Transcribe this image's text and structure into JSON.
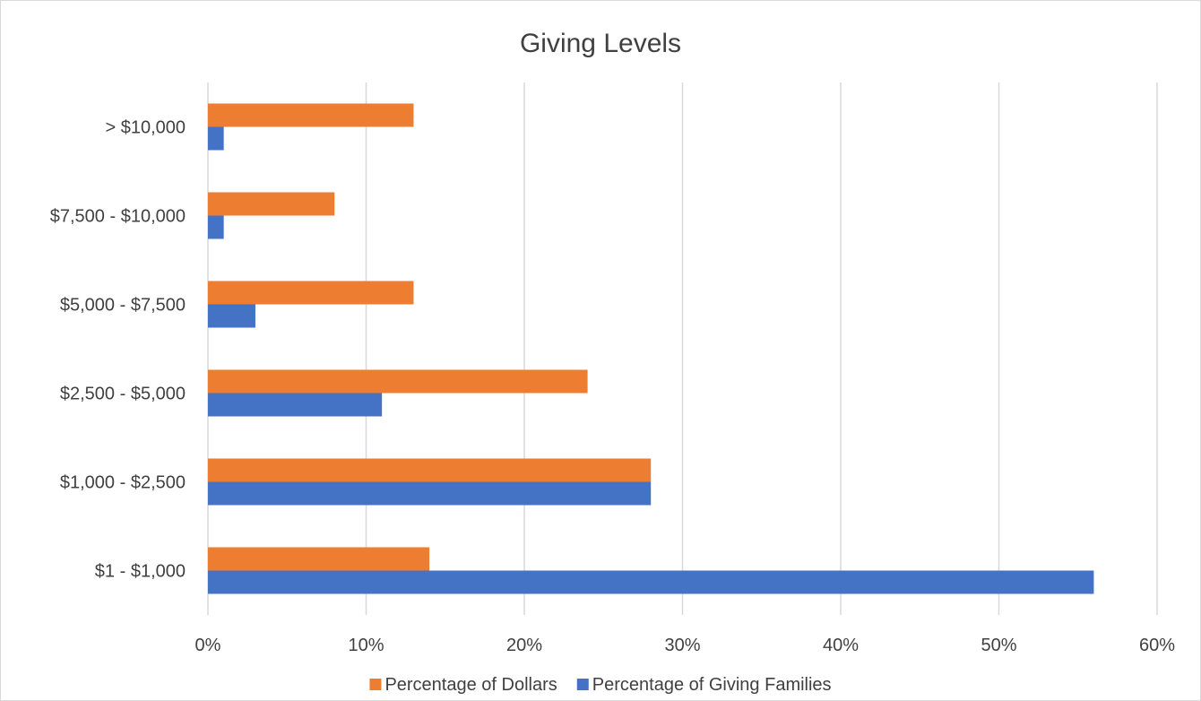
{
  "chart_data": {
    "type": "bar",
    "orientation": "horizontal",
    "title": "Giving Levels",
    "categories": [
      "$1 - $1,000",
      "$1,000 - $2,500",
      "$2,500 - $5,000",
      "$5,000 - $7,500",
      "$7,500 - $10,000",
      "> $10,000"
    ],
    "series": [
      {
        "name": "Percentage of Dollars",
        "color": "#ed7d31",
        "values": [
          14,
          28,
          24,
          13,
          8,
          13
        ]
      },
      {
        "name": "Percentage of Giving Families",
        "color": "#4472c4",
        "values": [
          56,
          28,
          11,
          3,
          1,
          1
        ]
      }
    ],
    "xlim": [
      0,
      60
    ],
    "xticks": [
      "0%",
      "10%",
      "20%",
      "30%",
      "40%",
      "50%",
      "60%"
    ],
    "grid": true,
    "legend_position": "bottom"
  }
}
